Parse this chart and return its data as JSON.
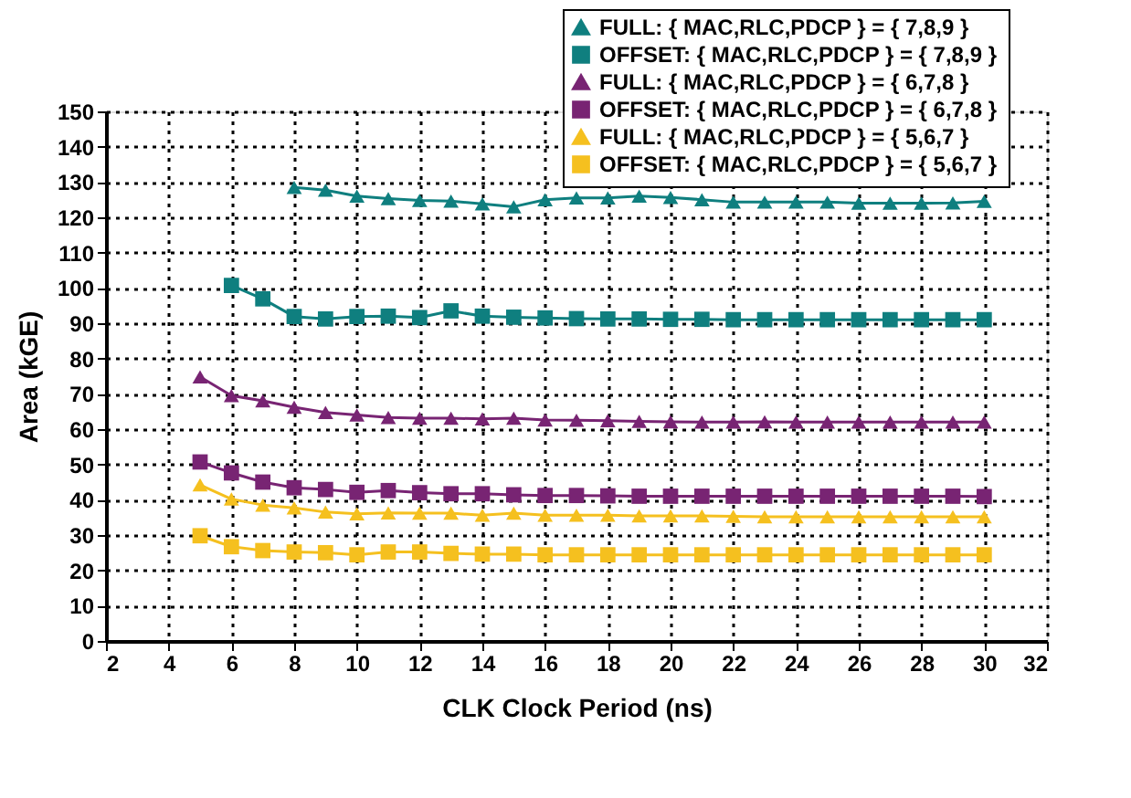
{
  "chart_data": {
    "type": "line",
    "xlabel": "CLK Clock Period (ns)",
    "ylabel": "Area (kGE)",
    "xlim": [
      2,
      32
    ],
    "xticks": [
      2,
      4,
      6,
      8,
      10,
      12,
      14,
      16,
      18,
      20,
      22,
      24,
      26,
      28,
      30,
      32
    ],
    "ylim": [
      0,
      150
    ],
    "yticks": [
      0,
      10,
      20,
      30,
      40,
      50,
      60,
      70,
      80,
      90,
      100,
      110,
      120,
      130,
      140,
      150
    ],
    "grid": true,
    "legend": "top right",
    "line_style": "solid",
    "series": [
      {
        "name": "FULL:      { MAC,RLC,PDCP } = { 7,8,9 }",
        "color": "#0f7f7f",
        "marker": "triangle",
        "x": [
          8,
          9,
          10,
          11,
          12,
          13,
          14,
          15,
          16,
          17,
          18,
          19,
          20,
          21,
          22,
          23,
          24,
          25,
          26,
          27,
          28,
          29,
          30
        ],
        "values": [
          128.5,
          127.7,
          126,
          125.3,
          124.8,
          124.6,
          123.8,
          123,
          125,
          125.5,
          125.5,
          126,
          125.6,
          125,
          124.3,
          124.3,
          124.3,
          124.3,
          124,
          124,
          124,
          124.1,
          124.5
        ]
      },
      {
        "name": "OFFSET: { MAC,RLC,PDCP } = { 7,8,9 }",
        "color": "#0f7f7f",
        "marker": "square",
        "x": [
          6,
          7,
          8,
          9,
          10,
          11,
          12,
          13,
          14,
          15,
          16,
          17,
          18,
          19,
          20,
          21,
          22,
          23,
          24,
          25,
          26,
          27,
          28,
          29,
          30
        ],
        "values": [
          100.7,
          96.9,
          91.9,
          91.2,
          91.9,
          92,
          91.6,
          93.5,
          92,
          91.7,
          91.5,
          91.3,
          91.2,
          91.2,
          91.1,
          91.1,
          91,
          91,
          91,
          91,
          91,
          91,
          91,
          91,
          91
        ]
      },
      {
        "name": "FULL:      { MAC,RLC,PDCP } = { 6,7,8 }",
        "color": "#782473",
        "marker": "triangle",
        "x": [
          5,
          6,
          7,
          8,
          9,
          10,
          11,
          12,
          13,
          14,
          15,
          16,
          17,
          18,
          19,
          20,
          21,
          22,
          23,
          24,
          25,
          26,
          27,
          28,
          29,
          30
        ],
        "values": [
          74.8,
          69.5,
          68,
          66.2,
          64.7,
          64,
          63.3,
          63.1,
          63.1,
          62.9,
          63.1,
          62.6,
          62.5,
          62.4,
          62.2,
          62.1,
          62,
          62,
          62.1,
          62,
          62,
          62,
          62,
          62,
          62,
          62
        ]
      },
      {
        "name": "OFFSET: { MAC,RLC,PDCP } = { 6,7,8 }",
        "color": "#782473",
        "marker": "square",
        "x": [
          5,
          6,
          7,
          8,
          9,
          10,
          11,
          12,
          13,
          14,
          15,
          16,
          17,
          18,
          19,
          20,
          21,
          22,
          23,
          24,
          25,
          26,
          27,
          28,
          29,
          30
        ],
        "values": [
          50.7,
          47.6,
          45,
          43.4,
          42.9,
          42.1,
          42.6,
          42,
          41.7,
          41.7,
          41.4,
          41.2,
          41.2,
          41.1,
          41,
          41,
          41,
          41,
          41,
          41,
          41,
          41,
          41,
          41,
          41,
          40.9
        ]
      },
      {
        "name": "FULL:      { MAC,RLC,PDCP } = { 5,6,7 }",
        "color": "#f5c01f",
        "marker": "triangle",
        "x": [
          5,
          6,
          7,
          8,
          9,
          10,
          11,
          12,
          13,
          14,
          15,
          16,
          17,
          18,
          19,
          20,
          21,
          22,
          23,
          24,
          25,
          26,
          27,
          28,
          29,
          30
        ],
        "values": [
          44.2,
          40.2,
          38.5,
          37.7,
          36.5,
          36,
          36.3,
          36.2,
          36.2,
          35.6,
          36.2,
          35.6,
          35.6,
          35.6,
          35.4,
          35.4,
          35.4,
          35.3,
          35.2,
          35.2,
          35.2,
          35.2,
          35.2,
          35.2,
          35.2,
          35.2
        ]
      },
      {
        "name": "OFFSET: { MAC,RLC,PDCP } = { 5,6,7 }",
        "color": "#f5c01f",
        "marker": "square",
        "x": [
          5,
          6,
          7,
          8,
          9,
          10,
          11,
          12,
          13,
          14,
          15,
          16,
          17,
          18,
          19,
          20,
          21,
          22,
          23,
          24,
          25,
          26,
          27,
          28,
          29,
          30
        ],
        "values": [
          29.8,
          26.7,
          25.6,
          25.2,
          25,
          24.4,
          25.2,
          25.2,
          24.8,
          24.6,
          24.6,
          24.4,
          24.4,
          24.4,
          24.4,
          24.4,
          24.4,
          24.4,
          24.4,
          24.4,
          24.4,
          24.4,
          24.4,
          24.4,
          24.4,
          24.4
        ]
      }
    ]
  }
}
